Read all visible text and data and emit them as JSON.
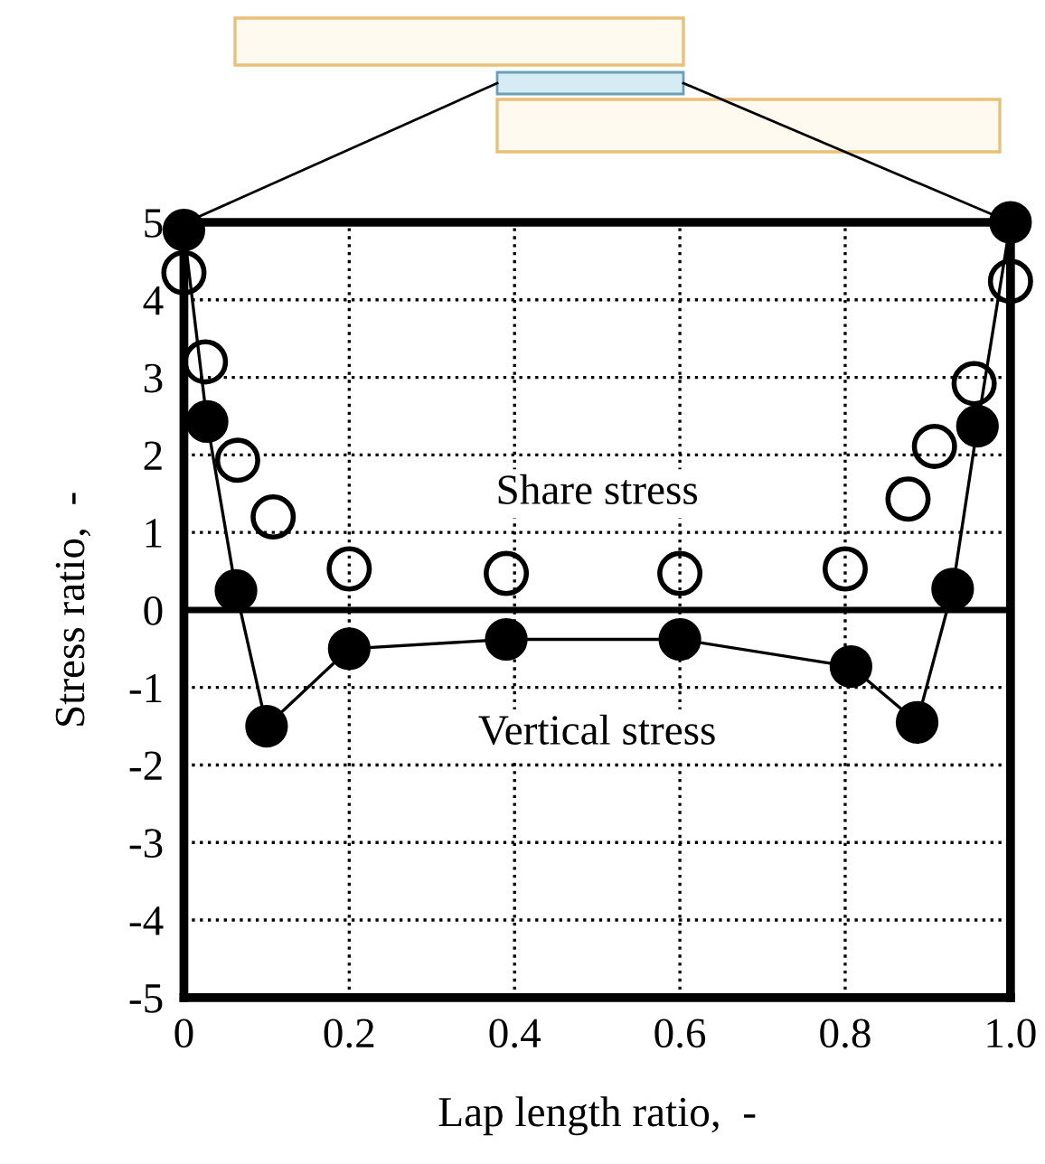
{
  "chart_data": {
    "type": "scatter",
    "xlabel": "Lap length ratio,  -",
    "ylabel": "Stress ratio,  -",
    "xlim": [
      0,
      1
    ],
    "ylim": [
      -5,
      5
    ],
    "xticks": [
      0,
      0.2,
      0.4,
      0.6,
      0.8,
      {
        "value": 1,
        "label": "1.0"
      }
    ],
    "yticks": [
      -5,
      -4,
      -3,
      -2,
      -1,
      0,
      1,
      2,
      3,
      4,
      5
    ],
    "grid": true,
    "legend": false,
    "marker": "circle",
    "series": [
      {
        "name": "Share stress",
        "color": "#000000",
        "x": [
          0,
          0.026,
          0.065,
          0.108,
          0.2,
          0.39,
          0.6,
          0.8,
          0.876,
          0.908,
          0.956,
          1.0
        ],
        "values": [
          4.35,
          3.2,
          1.93,
          1.2,
          0.53,
          0.47,
          0.47,
          0.53,
          1.43,
          2.11,
          2.92,
          4.24
        ]
      },
      {
        "name": "Vertical stress",
        "type": "line",
        "color": "#000000",
        "x": [
          0,
          0.028,
          0.063,
          0.1,
          0.2,
          0.39,
          0.6,
          0.807,
          0.887,
          0.93,
          0.96,
          1.0
        ],
        "values": [
          4.9,
          2.43,
          0.25,
          -1.5,
          -0.5,
          -0.38,
          -0.38,
          -0.73,
          -1.45,
          0.27,
          2.37,
          5.0
        ]
      }
    ]
  }
}
